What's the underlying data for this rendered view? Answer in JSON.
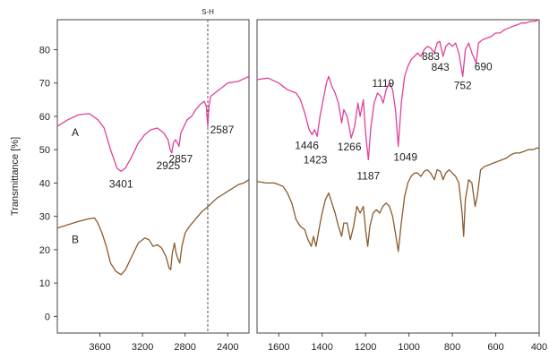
{
  "chart_data": {
    "type": "line",
    "xlabel": "",
    "ylabel": "Transmittance [%]",
    "ylim": [
      -5,
      89
    ],
    "x_reversed": true,
    "y_ticks": [
      0,
      10,
      20,
      30,
      40,
      50,
      60,
      70,
      80
    ],
    "panels": [
      {
        "xlim": [
          4000,
          2200
        ],
        "x_ticks": [
          3600,
          3200,
          2800,
          2400
        ],
        "annotation": {
          "label": "S-H",
          "x": 2587,
          "style": "dashed-vertical"
        }
      },
      {
        "xlim": [
          1700,
          400
        ],
        "x_ticks": [
          1600,
          1400,
          1200,
          1000,
          800,
          600,
          400
        ]
      }
    ],
    "series": [
      {
        "name": "A",
        "color": "#e0409a",
        "points_panel1": [
          [
            4000,
            57
          ],
          [
            3900,
            59
          ],
          [
            3800,
            60.5
          ],
          [
            3700,
            60.8
          ],
          [
            3620,
            59
          ],
          [
            3560,
            56.5
          ],
          [
            3500,
            50
          ],
          [
            3440,
            44.5
          ],
          [
            3401,
            43.5
          ],
          [
            3360,
            44.5
          ],
          [
            3300,
            48
          ],
          [
            3240,
            52
          ],
          [
            3180,
            54.5
          ],
          [
            3120,
            56
          ],
          [
            3060,
            56.5
          ],
          [
            3000,
            55
          ],
          [
            2960,
            53
          ],
          [
            2940,
            50
          ],
          [
            2925,
            49
          ],
          [
            2910,
            52
          ],
          [
            2890,
            53
          ],
          [
            2870,
            52
          ],
          [
            2857,
            51
          ],
          [
            2840,
            55
          ],
          [
            2810,
            57
          ],
          [
            2780,
            59
          ],
          [
            2740,
            60
          ],
          [
            2700,
            62
          ],
          [
            2660,
            63.5
          ],
          [
            2620,
            64.5
          ],
          [
            2600,
            63
          ],
          [
            2587,
            57
          ],
          [
            2575,
            63
          ],
          [
            2560,
            66
          ],
          [
            2520,
            67
          ],
          [
            2480,
            68
          ],
          [
            2440,
            69
          ],
          [
            2400,
            70
          ],
          [
            2300,
            70.5
          ],
          [
            2200,
            72
          ]
        ],
        "points_panel2": [
          [
            1700,
            71
          ],
          [
            1650,
            71.5
          ],
          [
            1600,
            70
          ],
          [
            1560,
            68
          ],
          [
            1520,
            67
          ],
          [
            1500,
            65
          ],
          [
            1480,
            61
          ],
          [
            1460,
            56
          ],
          [
            1446,
            54.5
          ],
          [
            1435,
            56
          ],
          [
            1423,
            54
          ],
          [
            1410,
            60
          ],
          [
            1395,
            65
          ],
          [
            1380,
            70
          ],
          [
            1370,
            72
          ],
          [
            1355,
            69
          ],
          [
            1340,
            67
          ],
          [
            1325,
            64
          ],
          [
            1310,
            58
          ],
          [
            1300,
            62
          ],
          [
            1285,
            60
          ],
          [
            1266,
            53.5
          ],
          [
            1250,
            57
          ],
          [
            1235,
            64
          ],
          [
            1225,
            60
          ],
          [
            1210,
            65
          ],
          [
            1200,
            55
          ],
          [
            1187,
            47
          ],
          [
            1175,
            57
          ],
          [
            1160,
            64
          ],
          [
            1145,
            67
          ],
          [
            1130,
            66
          ],
          [
            1119,
            64
          ],
          [
            1105,
            68
          ],
          [
            1090,
            70
          ],
          [
            1075,
            68
          ],
          [
            1062,
            62
          ],
          [
            1049,
            51
          ],
          [
            1035,
            64
          ],
          [
            1020,
            72
          ],
          [
            1005,
            75
          ],
          [
            990,
            77
          ],
          [
            975,
            78
          ],
          [
            960,
            79
          ],
          [
            945,
            78
          ],
          [
            930,
            80
          ],
          [
            915,
            81
          ],
          [
            900,
            80.5
          ],
          [
            883,
            79
          ],
          [
            870,
            82
          ],
          [
            858,
            82.5
          ],
          [
            843,
            78
          ],
          [
            830,
            81
          ],
          [
            815,
            82
          ],
          [
            800,
            81
          ],
          [
            785,
            82
          ],
          [
            770,
            79
          ],
          [
            752,
            72
          ],
          [
            740,
            80
          ],
          [
            725,
            82
          ],
          [
            710,
            79
          ],
          [
            690,
            76
          ],
          [
            680,
            82
          ],
          [
            660,
            83
          ],
          [
            640,
            83.5
          ],
          [
            620,
            84
          ],
          [
            600,
            85
          ],
          [
            580,
            85
          ],
          [
            560,
            86
          ],
          [
            540,
            86.5
          ],
          [
            520,
            87
          ],
          [
            500,
            87.5
          ],
          [
            480,
            88
          ],
          [
            460,
            88
          ],
          [
            440,
            88.5
          ],
          [
            420,
            88.5
          ],
          [
            400,
            89
          ]
        ]
      },
      {
        "name": "B",
        "color": "#8b5a2b",
        "points_panel1": [
          [
            4000,
            26.5
          ],
          [
            3900,
            27.5
          ],
          [
            3800,
            28.5
          ],
          [
            3700,
            29.3
          ],
          [
            3650,
            29.5
          ],
          [
            3620,
            28
          ],
          [
            3580,
            25
          ],
          [
            3540,
            21
          ],
          [
            3500,
            16
          ],
          [
            3450,
            13.5
          ],
          [
            3401,
            12.5
          ],
          [
            3360,
            14
          ],
          [
            3300,
            18
          ],
          [
            3240,
            22
          ],
          [
            3180,
            23.5
          ],
          [
            3140,
            23
          ],
          [
            3100,
            21
          ],
          [
            3060,
            21.5
          ],
          [
            3020,
            20.5
          ],
          [
            2980,
            18
          ],
          [
            2950,
            14.5
          ],
          [
            2935,
            14
          ],
          [
            2920,
            19
          ],
          [
            2900,
            22
          ],
          [
            2885,
            19
          ],
          [
            2870,
            17.5
          ],
          [
            2850,
            16
          ],
          [
            2830,
            21
          ],
          [
            2800,
            25
          ],
          [
            2760,
            27
          ],
          [
            2720,
            28.5
          ],
          [
            2680,
            30
          ],
          [
            2640,
            31.5
          ],
          [
            2600,
            32.5
          ],
          [
            2550,
            34
          ],
          [
            2500,
            35.5
          ],
          [
            2450,
            36.5
          ],
          [
            2400,
            37.5
          ],
          [
            2350,
            38.5
          ],
          [
            2300,
            39.5
          ],
          [
            2250,
            40
          ],
          [
            2200,
            41
          ]
        ],
        "points_panel2": [
          [
            1700,
            40.5
          ],
          [
            1660,
            40
          ],
          [
            1620,
            40
          ],
          [
            1580,
            39
          ],
          [
            1560,
            37
          ],
          [
            1540,
            34
          ],
          [
            1520,
            29
          ],
          [
            1500,
            27
          ],
          [
            1480,
            26
          ],
          [
            1465,
            23
          ],
          [
            1450,
            21
          ],
          [
            1440,
            24
          ],
          [
            1428,
            21
          ],
          [
            1415,
            26
          ],
          [
            1400,
            31
          ],
          [
            1385,
            35
          ],
          [
            1370,
            37
          ],
          [
            1355,
            34
          ],
          [
            1340,
            31
          ],
          [
            1325,
            27
          ],
          [
            1310,
            24
          ],
          [
            1300,
            28
          ],
          [
            1285,
            28
          ],
          [
            1270,
            23
          ],
          [
            1255,
            27
          ],
          [
            1240,
            33
          ],
          [
            1225,
            31
          ],
          [
            1210,
            33
          ],
          [
            1200,
            26
          ],
          [
            1190,
            21
          ],
          [
            1180,
            27
          ],
          [
            1165,
            31
          ],
          [
            1150,
            32
          ],
          [
            1135,
            31
          ],
          [
            1120,
            33
          ],
          [
            1105,
            34
          ],
          [
            1090,
            33
          ],
          [
            1075,
            30
          ],
          [
            1060,
            24
          ],
          [
            1049,
            19.5
          ],
          [
            1035,
            28
          ],
          [
            1020,
            36
          ],
          [
            1005,
            40
          ],
          [
            990,
            42
          ],
          [
            975,
            43
          ],
          [
            960,
            43
          ],
          [
            945,
            42
          ],
          [
            930,
            43.5
          ],
          [
            915,
            44
          ],
          [
            900,
            43
          ],
          [
            883,
            41
          ],
          [
            870,
            44
          ],
          [
            855,
            43.5
          ],
          [
            843,
            41
          ],
          [
            830,
            43
          ],
          [
            815,
            44
          ],
          [
            800,
            43
          ],
          [
            785,
            42
          ],
          [
            770,
            40
          ],
          [
            755,
            31
          ],
          [
            748,
            24
          ],
          [
            740,
            35
          ],
          [
            725,
            41
          ],
          [
            710,
            40
          ],
          [
            695,
            33
          ],
          [
            685,
            36
          ],
          [
            670,
            44
          ],
          [
            650,
            45
          ],
          [
            630,
            45.5
          ],
          [
            610,
            46
          ],
          [
            590,
            46.5
          ],
          [
            570,
            47
          ],
          [
            550,
            47.5
          ],
          [
            530,
            48.5
          ],
          [
            510,
            49
          ],
          [
            490,
            49
          ],
          [
            470,
            49.5
          ],
          [
            450,
            50
          ],
          [
            430,
            50
          ],
          [
            410,
            50.5
          ],
          [
            400,
            50.5
          ]
        ]
      }
    ],
    "peak_labels": [
      {
        "text": "3401",
        "x": 3401,
        "y": 43.5,
        "panel": 0
      },
      {
        "text": "2925",
        "x": 2925,
        "y": 49,
        "panel": 0
      },
      {
        "text": "2857",
        "x": 2857,
        "y": 51,
        "panel": 0
      },
      {
        "text": "2587",
        "x": 2587,
        "y": 57,
        "panel": 0
      },
      {
        "text": "1446",
        "x": 1446,
        "y": 54.5,
        "panel": 1
      },
      {
        "text": "1423",
        "x": 1423,
        "y": 54,
        "panel": 1
      },
      {
        "text": "1266",
        "x": 1266,
        "y": 53.5,
        "panel": 1
      },
      {
        "text": "1187",
        "x": 1187,
        "y": 47,
        "panel": 1
      },
      {
        "text": "1119",
        "x": 1119,
        "y": 64,
        "panel": 1
      },
      {
        "text": "1049",
        "x": 1049,
        "y": 51,
        "panel": 1
      },
      {
        "text": "883",
        "x": 883,
        "y": 79,
        "panel": 1
      },
      {
        "text": "843",
        "x": 843,
        "y": 78,
        "panel": 1
      },
      {
        "text": "752",
        "x": 752,
        "y": 72,
        "panel": 1
      },
      {
        "text": "690",
        "x": 690,
        "y": 76,
        "panel": 1
      }
    ]
  }
}
